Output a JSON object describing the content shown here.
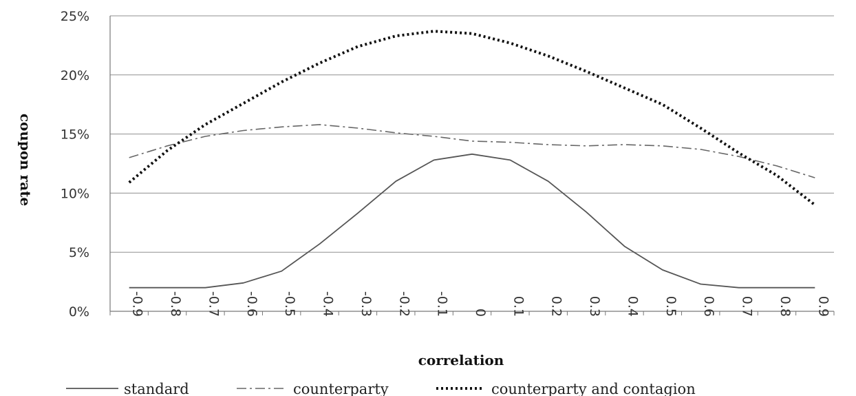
{
  "chart_data": {
    "type": "line",
    "title": "",
    "xlabel": "correlation",
    "ylabel": "coupon rate",
    "x": [
      "-0.9",
      "-0.8",
      "-0.7",
      "-0.6",
      "-0.5",
      "-0.4",
      "-0.3",
      "-0.2",
      "-0.1",
      "0",
      "0.1",
      "0.2",
      "0.3",
      "0.4",
      "0.5",
      "0.6",
      "0.7",
      "0.8",
      "0.9"
    ],
    "y_ticks": [
      "0%",
      "5%",
      "10%",
      "15%",
      "20%",
      "25%"
    ],
    "ylim": [
      0,
      25
    ],
    "grid": "horizontal",
    "legend": "bottom",
    "series": [
      {
        "name": "standard",
        "style": "solid",
        "color": "#555555",
        "values": [
          2.0,
          2.0,
          2.0,
          2.4,
          3.4,
          5.7,
          8.3,
          11.0,
          12.8,
          13.3,
          12.8,
          11.0,
          8.4,
          5.5,
          3.5,
          2.3,
          2.0,
          2.0,
          2.0
        ]
      },
      {
        "name": "counterparty",
        "style": "dash-dot",
        "color": "#666666",
        "values": [
          13.0,
          14.0,
          14.8,
          15.3,
          15.6,
          15.8,
          15.5,
          15.1,
          14.8,
          14.4,
          14.3,
          14.1,
          14.0,
          14.1,
          14.0,
          13.7,
          13.1,
          12.3,
          11.3
        ]
      },
      {
        "name": "counterparty and contagion",
        "style": "dotted",
        "color": "#111111",
        "values": [
          10.9,
          13.6,
          15.8,
          17.6,
          19.4,
          21.0,
          22.4,
          23.3,
          23.7,
          23.5,
          22.7,
          21.6,
          20.3,
          18.9,
          17.5,
          15.5,
          13.4,
          11.5,
          9.0
        ]
      }
    ]
  }
}
